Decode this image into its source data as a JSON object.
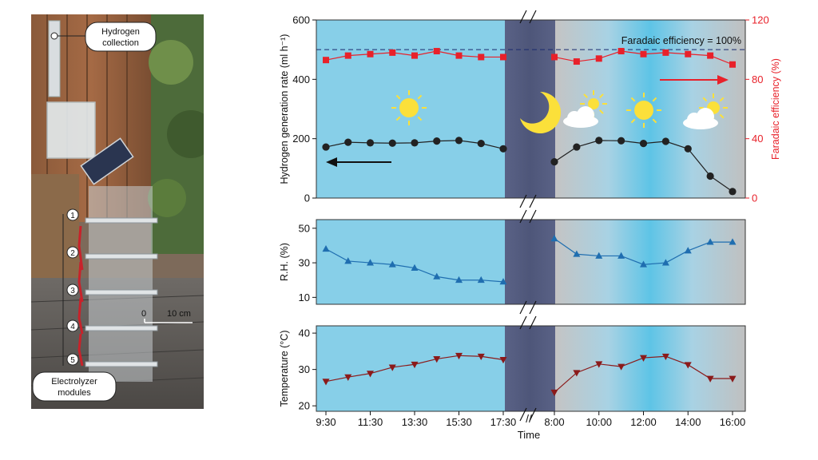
{
  "photo": {
    "hydrogen_label_1": "Hydrogen",
    "hydrogen_label_2": "collection",
    "electrolyzer_label_1": "Electrolyzer",
    "electrolyzer_label_2": "modules",
    "module_numbers": [
      "1",
      "2",
      "3",
      "4",
      "5"
    ],
    "scale_zero": "0",
    "scale_label": "10 cm"
  },
  "colors": {
    "day_bg": "#87cfe8",
    "night_bg": "#545c80",
    "cloudy_bg": "#c4c4c4",
    "h2_series": "#222222",
    "fe_series": "#e8212a",
    "rh_series": "#1f6eb0",
    "temp_series": "#8b1a1a"
  },
  "chart_data": [
    {
      "type": "line",
      "title": "",
      "xlabel": "Time",
      "ylabel": "Hydrogen generation rate (ml h⁻¹)",
      "y2label": "Faradaic efficiency (%)",
      "ylim": [
        0,
        600
      ],
      "y2lim": [
        0,
        120
      ],
      "yticks": [
        "0",
        "200",
        "400",
        "600"
      ],
      "y2ticks": [
        "0",
        "40",
        "80",
        "120"
      ],
      "reference_line": {
        "value": 100,
        "axis": "y2",
        "label": "Faradaic efficiency = 100%"
      },
      "series": [
        {
          "name": "Hydrogen generation rate",
          "axis": "y",
          "day1": {
            "x": [
              0,
              0.5,
              1,
              1.5,
              2,
              2.5,
              3,
              3.5,
              4
            ],
            "values": [
              172,
              188,
              186,
              185,
              186,
              192,
              194,
              184,
              166
            ]
          },
          "day2": {
            "x": [
              0,
              0.5,
              1,
              1.5,
              2,
              2.5,
              3,
              3.5,
              4
            ],
            "values": [
              122,
              172,
              194,
              193,
              184,
              191,
              166,
              74,
              22
            ]
          }
        },
        {
          "name": "Faradaic efficiency",
          "axis": "y2",
          "day1": {
            "x": [
              0,
              0.5,
              1,
              1.5,
              2,
              2.5,
              3,
              3.5,
              4
            ],
            "values": [
              93,
              96,
              97,
              98,
              96,
              99,
              96,
              95,
              95
            ]
          },
          "day2": {
            "x": [
              0,
              0.5,
              1,
              1.5,
              2,
              2.5,
              3,
              3.5,
              4
            ],
            "values": [
              95,
              92,
              94,
              99,
              97,
              98,
              97,
              96,
              90
            ]
          }
        }
      ]
    },
    {
      "type": "line",
      "title": "",
      "ylabel": "R.H. (%)",
      "ylim": [
        6,
        55
      ],
      "yticks": [
        "10",
        "30",
        "50"
      ],
      "series": [
        {
          "name": "Relative humidity",
          "day1": {
            "x": [
              0,
              0.5,
              1,
              1.5,
              2,
              2.5,
              3,
              3.5,
              4
            ],
            "values": [
              38,
              31,
              30,
              29,
              27,
              22,
              20,
              20,
              19
            ]
          },
          "day2": {
            "x": [
              0,
              0.5,
              1,
              1.5,
              2,
              2.5,
              3,
              3.5,
              4
            ],
            "values": [
              44,
              35,
              34,
              34,
              29,
              30,
              37,
              42,
              42
            ]
          }
        }
      ]
    },
    {
      "type": "line",
      "title": "",
      "ylabel": "Temperature (°C)",
      "ylim": [
        18.5,
        42
      ],
      "yticks": [
        "20",
        "30",
        "40"
      ],
      "series": [
        {
          "name": "Temperature",
          "day1": {
            "x": [
              0,
              0.5,
              1,
              1.5,
              2,
              2.5,
              3,
              3.5,
              4
            ],
            "values": [
              26.7,
              27.9,
              28.9,
              30.6,
              31.4,
              32.9,
              33.8,
              33.6,
              32.7
            ]
          },
          "day2": {
            "x": [
              0,
              0.5,
              1,
              1.5,
              2,
              2.5,
              3,
              3.5,
              4
            ],
            "values": [
              23.7,
              29.1,
              31.5,
              30.8,
              33.2,
              33.6,
              31.3,
              27.5,
              27.5
            ]
          }
        }
      ]
    }
  ],
  "x_axis": {
    "day1_ticks": [
      "9:30",
      "11:30",
      "13:30",
      "15:30",
      "17:30"
    ],
    "day2_ticks": [
      "8:00",
      "10:00",
      "12:00",
      "14:00",
      "16:00"
    ],
    "break_mark": "//"
  }
}
